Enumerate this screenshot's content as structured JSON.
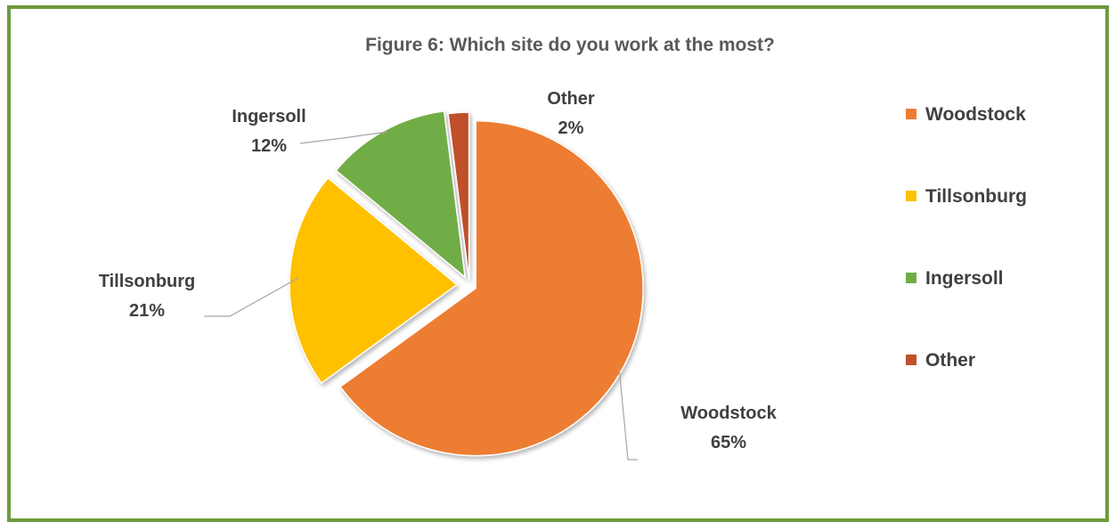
{
  "chart_data": {
    "type": "pie",
    "title": "Figure 6: Which site do you work at the most?",
    "categories": [
      "Woodstock",
      "Tillsonburg",
      "Ingersoll",
      "Other"
    ],
    "values": [
      65,
      21,
      12,
      2
    ],
    "value_labels": [
      "65%",
      "21%",
      "12%",
      "2%"
    ],
    "unit": "%",
    "colors": [
      "#ed7d31",
      "#ffc000",
      "#70ad47",
      "#c0502a"
    ],
    "exploded": true,
    "legend": {
      "position": "right",
      "entries": [
        "Woodstock",
        "Tillsonburg",
        "Ingersoll",
        "Other"
      ]
    }
  }
}
